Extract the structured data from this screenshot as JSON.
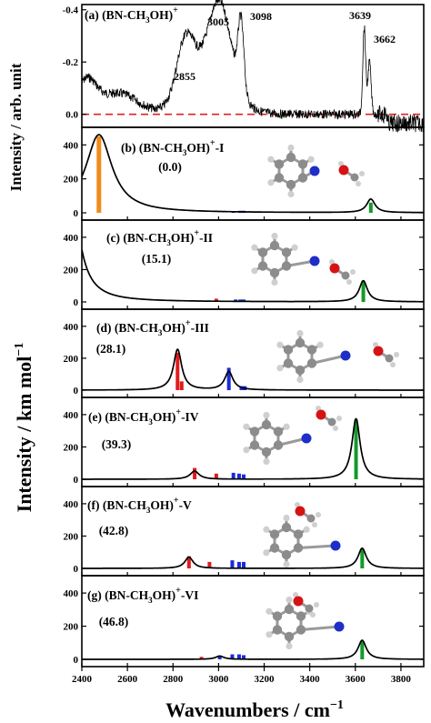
{
  "colors": {
    "fill_red": "#e21b1b",
    "fill_blue": "#1a2bd6",
    "fill_green": "#139a2b",
    "fill_orange": "#f08c1a",
    "zero_line": "#e02020"
  },
  "chart_data": [
    {
      "type": "line",
      "panel": "a",
      "label_main": "(a) (BN-CH",
      "label_sub": "3",
      "label_tail": "OH)",
      "label_sup": "+",
      "ylabel": "Intensity / arb. unit",
      "ylim": [
        0.05,
        -0.42
      ],
      "yticks": [
        "-0.4",
        "-0.2",
        "0.0"
      ],
      "peak_labels": [
        "2855",
        "3005",
        "3098",
        "3639",
        "3662"
      ],
      "peaks": [
        {
          "x": 2855,
          "y": -0.22
        },
        {
          "x": 3005,
          "y": -0.34
        },
        {
          "x": 3098,
          "y": -0.33
        },
        {
          "x": 3639,
          "y": -0.36
        },
        {
          "x": 3662,
          "y": -0.28
        }
      ]
    },
    {
      "type": "line",
      "panel": "b",
      "label_main": "(b) (BN-CH",
      "label_sub": "3",
      "label_tail": "OH)",
      "label_sup": "+",
      "label_suffix": "-I",
      "energy": "(0.0)",
      "ylim": [
        0,
        450
      ],
      "yticks": [
        "0",
        "200",
        "400"
      ],
      "sticks": [
        {
          "x": 2475,
          "h": 450,
          "c": "orange"
        },
        {
          "x": 3065,
          "h": 10,
          "c": "blue"
        },
        {
          "x": 3095,
          "h": 12,
          "c": "blue"
        },
        {
          "x": 3110,
          "h": 12,
          "c": "blue"
        },
        {
          "x": 3225,
          "h": 8,
          "c": "blue"
        },
        {
          "x": 3668,
          "h": 60,
          "c": "green"
        }
      ],
      "curve": [
        {
          "x": 3668,
          "h": 80,
          "w": 22
        }
      ],
      "tail": {
        "x0": 2475,
        "h": 460,
        "w": 70
      }
    },
    {
      "type": "line",
      "panel": "c",
      "label_main": "(c) (BN-CH",
      "label_sub": "3",
      "label_tail": "OH)",
      "label_sup": "+",
      "label_suffix": "-II",
      "energy": "(15.1)",
      "ylim": [
        0,
        450
      ],
      "yticks": [
        "0",
        "200",
        "400"
      ],
      "sticks": [
        {
          "x": 2990,
          "h": 20,
          "c": "red"
        },
        {
          "x": 3075,
          "h": 15,
          "c": "blue"
        },
        {
          "x": 3095,
          "h": 15,
          "c": "blue"
        },
        {
          "x": 3110,
          "h": 15,
          "c": "blue"
        },
        {
          "x": 3635,
          "h": 130,
          "c": "green"
        }
      ],
      "curve": [
        {
          "x": 3635,
          "h": 130,
          "w": 22
        }
      ],
      "tail": {
        "x0": 2340,
        "h": 900,
        "w": 45
      }
    },
    {
      "type": "line",
      "panel": "d",
      "label_main": "(d) (BN-CH",
      "label_sub": "3",
      "label_tail": "OH)",
      "label_sup": "+",
      "label_suffix": "-III",
      "energy": "(28.1)",
      "ylim": [
        0,
        450
      ],
      "yticks": [
        "0",
        "200",
        "400"
      ],
      "sticks": [
        {
          "x": 2820,
          "h": 235,
          "c": "red"
        },
        {
          "x": 2838,
          "h": 55,
          "c": "red"
        },
        {
          "x": 3045,
          "h": 140,
          "c": "blue"
        },
        {
          "x": 3100,
          "h": 25,
          "c": "blue"
        },
        {
          "x": 3115,
          "h": 25,
          "c": "blue"
        }
      ],
      "curve": [
        {
          "x": 2820,
          "h": 255,
          "w": 22
        },
        {
          "x": 3045,
          "h": 115,
          "w": 22
        }
      ],
      "tail": null
    },
    {
      "type": "line",
      "panel": "e",
      "label_main": "(e) (BN-CH",
      "label_sub": "3",
      "label_tail": "OH)",
      "label_sup": "+",
      "label_suffix": "-IV",
      "energy": "(39.3)",
      "ylim": [
        0,
        450
      ],
      "yticks": [
        "0",
        "200",
        "400"
      ],
      "sticks": [
        {
          "x": 2895,
          "h": 70,
          "c": "red"
        },
        {
          "x": 2990,
          "h": 35,
          "c": "red"
        },
        {
          "x": 3065,
          "h": 40,
          "c": "blue"
        },
        {
          "x": 3090,
          "h": 35,
          "c": "blue"
        },
        {
          "x": 3110,
          "h": 30,
          "c": "blue"
        },
        {
          "x": 3603,
          "h": 370,
          "c": "green"
        }
      ],
      "curve": [
        {
          "x": 2895,
          "h": 50,
          "w": 24
        },
        {
          "x": 3603,
          "h": 375,
          "w": 22
        }
      ],
      "tail": null
    },
    {
      "type": "line",
      "panel": "f",
      "label_main": "(f) (BN-CH",
      "label_sub": "3",
      "label_tail": "OH)",
      "label_sup": "+",
      "label_suffix": "-V",
      "energy": "(42.8)",
      "ylim": [
        0,
        450
      ],
      "yticks": [
        "0",
        "200",
        "400"
      ],
      "sticks": [
        {
          "x": 2870,
          "h": 75,
          "c": "red"
        },
        {
          "x": 2960,
          "h": 40,
          "c": "red"
        },
        {
          "x": 3060,
          "h": 50,
          "c": "blue"
        },
        {
          "x": 3090,
          "h": 40,
          "c": "blue"
        },
        {
          "x": 3110,
          "h": 40,
          "c": "blue"
        },
        {
          "x": 3630,
          "h": 120,
          "c": "green"
        }
      ],
      "curve": [
        {
          "x": 2870,
          "h": 70,
          "w": 22
        },
        {
          "x": 3630,
          "h": 125,
          "w": 22
        }
      ],
      "tail": null
    },
    {
      "type": "line",
      "panel": "g",
      "label_main": "(g) (BN-CH",
      "label_sub": "3",
      "label_tail": "OH)",
      "label_sup": "+",
      "label_suffix": "-VI",
      "energy": "(46.8)",
      "ylim": [
        0,
        450
      ],
      "yticks": [
        "0",
        "200",
        "400"
      ],
      "sticks": [
        {
          "x": 2925,
          "h": 15,
          "c": "red"
        },
        {
          "x": 3005,
          "h": 20,
          "c": "blue"
        },
        {
          "x": 3060,
          "h": 30,
          "c": "blue"
        },
        {
          "x": 3090,
          "h": 30,
          "c": "blue"
        },
        {
          "x": 3110,
          "h": 25,
          "c": "blue"
        },
        {
          "x": 3630,
          "h": 110,
          "c": "green"
        }
      ],
      "curve": [
        {
          "x": 3005,
          "h": 20,
          "w": 22
        },
        {
          "x": 3630,
          "h": 115,
          "w": 22
        }
      ],
      "tail": null
    }
  ],
  "shared_axis": {
    "xlabel": "Wavenumbers / cm",
    "xlabel_sup": "−1",
    "xlim": [
      2400,
      3900
    ],
    "xticks": [
      "2400",
      "2600",
      "2800",
      "3000",
      "3200",
      "3400",
      "3600",
      "3800"
    ],
    "ylabel": "Intensity / km mol",
    "ylabel_sup": "−1"
  }
}
